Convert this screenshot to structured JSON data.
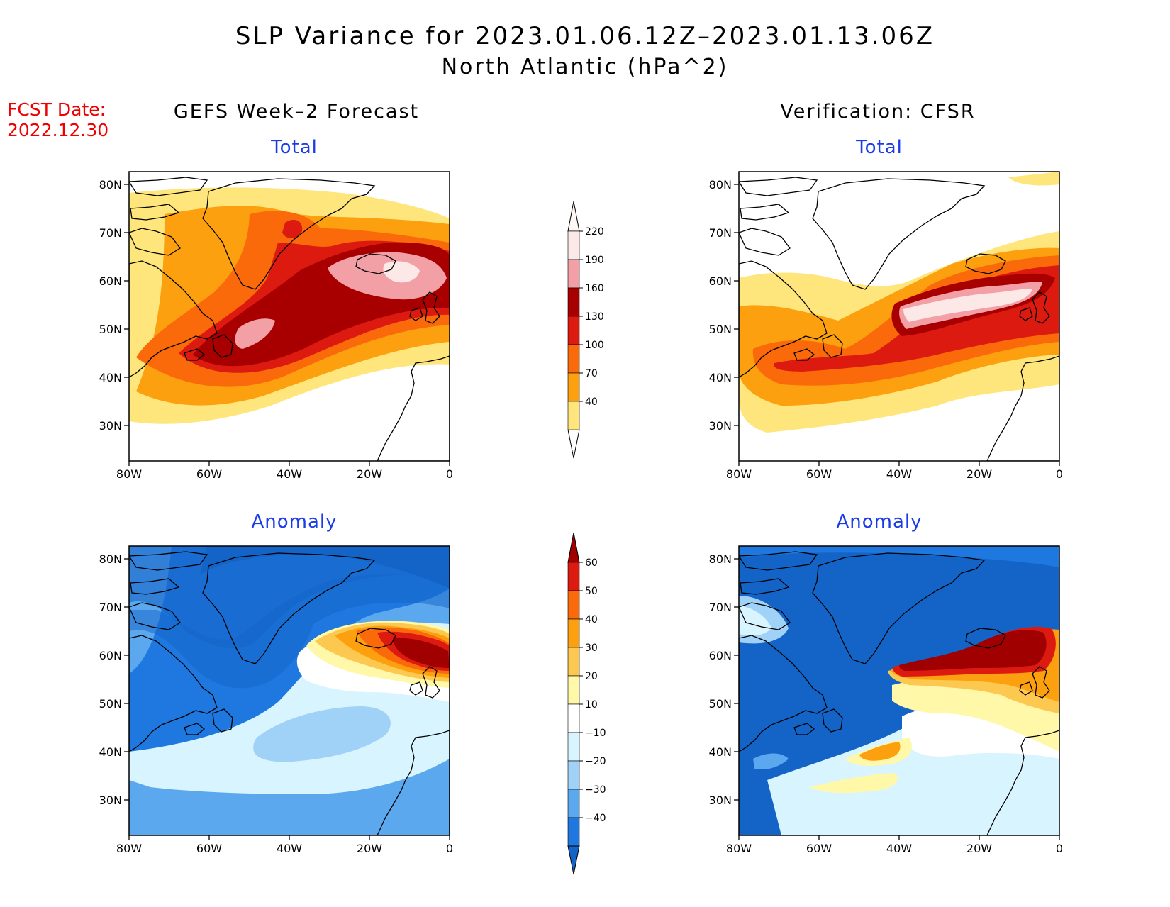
{
  "title": {
    "line1": "SLP Variance for 2023.01.06.12Z–2023.01.13.06Z",
    "line2": "North Atlantic (hPa^2)"
  },
  "fcst": {
    "line1": "FCST Date:",
    "line2": "2022.12.30"
  },
  "columns": {
    "left": "GEFS Week–2 Forecast",
    "right": "Verification: CFSR"
  },
  "panel_titles": {
    "total": "Total",
    "anomaly": "Anomaly"
  },
  "axes": {
    "lat_labels": [
      "80N",
      "70N",
      "60N",
      "50N",
      "40N",
      "30N"
    ],
    "lon_labels": [
      "80W",
      "60W",
      "40W",
      "20W",
      "0"
    ]
  },
  "colorbars": {
    "total": {
      "levels": [
        "220",
        "190",
        "160",
        "130",
        "100",
        "70",
        "40"
      ],
      "colors": [
        "#fde8e8",
        "#f2a0a6",
        "#a80000",
        "#dd1a10",
        "#fb6a0a",
        "#fca00f",
        "#fee67c"
      ]
    },
    "anomaly": {
      "levels": [
        "60",
        "50",
        "40",
        "30",
        "20",
        "10",
        "−10",
        "−20",
        "−30",
        "−40"
      ],
      "colors": [
        "#a00000",
        "#dd1a10",
        "#fb6a0a",
        "#fca00f",
        "#fdc850",
        "#fff8a8",
        "#ffffff",
        "#d8f4ff",
        "#a0d2f8",
        "#5ca8ee",
        "#1e78e0",
        "#1464c8"
      ]
    }
  },
  "colors": {
    "title_blue": "#1a3ce8",
    "fcst_red": "#ee0000"
  }
}
